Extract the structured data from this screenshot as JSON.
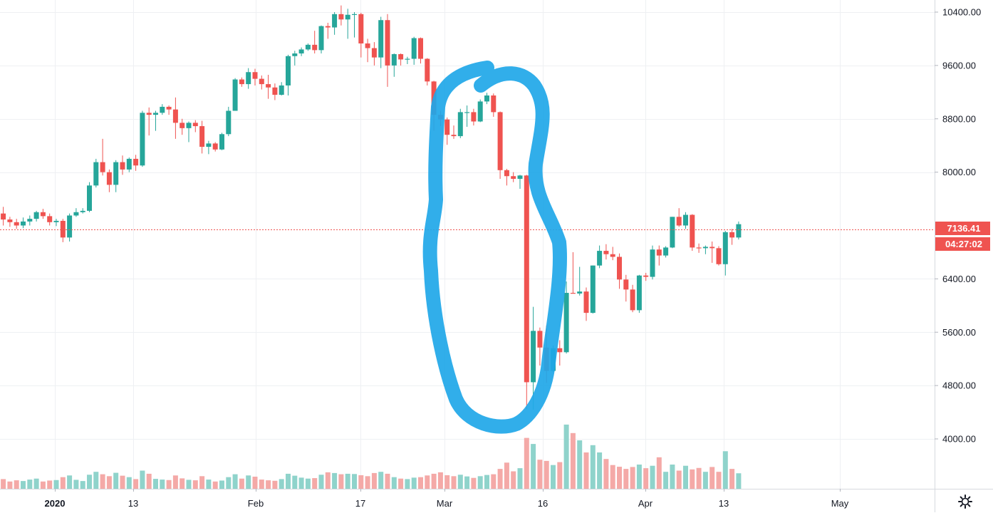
{
  "chart_data": {
    "type": "candlestick",
    "y_ticks": [
      "10400.00",
      "9600.00",
      "8800.00",
      "8000.00",
      "6400.00",
      "5600.00",
      "4800.00",
      "4000.00"
    ],
    "y_tick_values": [
      10400,
      9600,
      8800,
      8000,
      6400,
      5600,
      4800,
      4000
    ],
    "x_labels": [
      {
        "label": "2020",
        "bold": true
      },
      {
        "label": "13"
      },
      {
        "label": "Feb"
      },
      {
        "label": "17"
      },
      {
        "label": "Mar"
      },
      {
        "label": "16"
      },
      {
        "label": "Apr"
      },
      {
        "label": "13"
      },
      {
        "label": "May"
      }
    ],
    "ylim": [
      3220,
      10700
    ],
    "last_price": "7136.41",
    "countdown": "04:27:02",
    "colors": {
      "up": "#26a69a",
      "down": "#ef5350",
      "up_volume": "#8fd3cb",
      "down_volume": "#f4a9a7",
      "annotation": "#1fa7e8",
      "grid": "#eef0f3"
    },
    "candles": [
      [
        7380,
        7290,
        7480,
        7200,
        40
      ],
      [
        7290,
        7250,
        7330,
        7180,
        30
      ],
      [
        7250,
        7200,
        7300,
        7150,
        35
      ],
      [
        7200,
        7260,
        7320,
        7160,
        32
      ],
      [
        7260,
        7300,
        7350,
        7200,
        38
      ],
      [
        7300,
        7400,
        7420,
        7260,
        42
      ],
      [
        7400,
        7340,
        7450,
        7300,
        30
      ],
      [
        7340,
        7250,
        7380,
        7200,
        34
      ],
      [
        7250,
        7270,
        7300,
        7190,
        36
      ],
      [
        7270,
        7020,
        7300,
        6950,
        48
      ],
      [
        7020,
        7350,
        7380,
        6960,
        55
      ],
      [
        7350,
        7400,
        7460,
        7330,
        37
      ],
      [
        7400,
        7420,
        7460,
        7380,
        32
      ],
      [
        7420,
        7800,
        7850,
        7400,
        58
      ],
      [
        7800,
        8150,
        8200,
        7770,
        70
      ],
      [
        8150,
        8000,
        8500,
        7950,
        60
      ],
      [
        8000,
        7810,
        8040,
        7700,
        52
      ],
      [
        7810,
        8150,
        8180,
        7700,
        66
      ],
      [
        8150,
        8040,
        8250,
        7960,
        54
      ],
      [
        8040,
        8200,
        8220,
        8000,
        48
      ],
      [
        8200,
        8100,
        8260,
        8020,
        40
      ],
      [
        8100,
        8890,
        8920,
        8080,
        75
      ],
      [
        8890,
        8860,
        8970,
        8550,
        62
      ],
      [
        8860,
        8890,
        8920,
        8620,
        41
      ],
      [
        8890,
        8980,
        9020,
        8860,
        38
      ],
      [
        8980,
        8940,
        9000,
        8860,
        36
      ],
      [
        8940,
        8740,
        9120,
        8500,
        55
      ],
      [
        8740,
        8660,
        8800,
        8560,
        43
      ],
      [
        8660,
        8740,
        8760,
        8450,
        37
      ],
      [
        8740,
        8690,
        8780,
        8600,
        35
      ],
      [
        8690,
        8380,
        8770,
        8280,
        52
      ],
      [
        8380,
        8430,
        8470,
        8270,
        38
      ],
      [
        8430,
        8340,
        8450,
        8310,
        30
      ],
      [
        8340,
        8570,
        8590,
        8330,
        34
      ],
      [
        8570,
        8920,
        8980,
        8540,
        48
      ],
      [
        8920,
        9390,
        9410,
        8920,
        60
      ],
      [
        9390,
        9320,
        9420,
        9280,
        42
      ],
      [
        9320,
        9500,
        9560,
        9250,
        55
      ],
      [
        9500,
        9400,
        9550,
        9300,
        50
      ],
      [
        9400,
        9320,
        9450,
        9240,
        38
      ],
      [
        9320,
        9270,
        9460,
        9100,
        35
      ],
      [
        9270,
        9160,
        9330,
        9080,
        33
      ],
      [
        9160,
        9300,
        9350,
        9150,
        40
      ],
      [
        9300,
        9740,
        9760,
        9150,
        62
      ],
      [
        9740,
        9780,
        9820,
        9600,
        54
      ],
      [
        9780,
        9840,
        9870,
        9740,
        46
      ],
      [
        9840,
        9910,
        9930,
        9820,
        42
      ],
      [
        9910,
        9830,
        10120,
        9780,
        44
      ],
      [
        9830,
        10190,
        10200,
        9780,
        58
      ],
      [
        10190,
        10170,
        10240,
        10000,
        68
      ],
      [
        10170,
        10370,
        10400,
        10060,
        65
      ],
      [
        10370,
        10290,
        10500,
        10200,
        60
      ],
      [
        10290,
        10360,
        10450,
        10000,
        62
      ],
      [
        10360,
        10370,
        10400,
        10020,
        61
      ],
      [
        10370,
        9930,
        10390,
        9720,
        56
      ],
      [
        9930,
        9860,
        10000,
        9650,
        52
      ],
      [
        9860,
        9720,
        9950,
        9600,
        65
      ],
      [
        9720,
        10280,
        10330,
        9560,
        70
      ],
      [
        10280,
        9600,
        10370,
        9280,
        62
      ],
      [
        9600,
        9770,
        9780,
        9430,
        48
      ],
      [
        9770,
        9690,
        9780,
        9600,
        42
      ],
      [
        9690,
        9700,
        9730,
        9620,
        40
      ],
      [
        9700,
        10010,
        10030,
        9610,
        46
      ],
      [
        10010,
        9700,
        10020,
        9630,
        48
      ],
      [
        9700,
        9360,
        9710,
        9300,
        55
      ],
      [
        9360,
        8860,
        9370,
        8620,
        62
      ],
      [
        8860,
        8790,
        8920,
        8690,
        68
      ],
      [
        8790,
        8560,
        8820,
        8410,
        56
      ],
      [
        8560,
        8540,
        8700,
        8500,
        52
      ],
      [
        8540,
        8900,
        8950,
        8510,
        58
      ],
      [
        8900,
        8900,
        9000,
        8680,
        51
      ],
      [
        8900,
        8760,
        8950,
        8700,
        45
      ],
      [
        8760,
        9060,
        9090,
        8750,
        52
      ],
      [
        9060,
        9150,
        9190,
        9020,
        57
      ],
      [
        9150,
        8900,
        9180,
        8830,
        60
      ],
      [
        8900,
        8030,
        8910,
        7900,
        82
      ],
      [
        8030,
        7940,
        8050,
        7800,
        108
      ],
      [
        7940,
        7900,
        8000,
        7850,
        72
      ],
      [
        7900,
        7950,
        7960,
        7750,
        85
      ],
      [
        7950,
        4850,
        7960,
        4450,
        210
      ],
      [
        4850,
        5620,
        5980,
        4440,
        185
      ],
      [
        5620,
        5370,
        5670,
        5100,
        120
      ],
      [
        5370,
        5020,
        5700,
        4840,
        115
      ],
      [
        5020,
        5360,
        5400,
        5000,
        98
      ],
      [
        5360,
        5300,
        5480,
        5100,
        110
      ],
      [
        5300,
        6190,
        6360,
        5280,
        265
      ],
      [
        6190,
        6180,
        6800,
        6180,
        230
      ],
      [
        6180,
        6210,
        6580,
        6150,
        200
      ],
      [
        6210,
        5890,
        6270,
        5770,
        150
      ],
      [
        5890,
        6600,
        6600,
        5880,
        180
      ],
      [
        6600,
        6820,
        6900,
        6560,
        150
      ],
      [
        6820,
        6770,
        6920,
        6690,
        123
      ],
      [
        6770,
        6730,
        6880,
        6680,
        98
      ],
      [
        6730,
        6390,
        6780,
        6250,
        91
      ],
      [
        6390,
        6240,
        6460,
        6060,
        82
      ],
      [
        6240,
        5930,
        6310,
        5900,
        90
      ],
      [
        5930,
        6450,
        6460,
        5890,
        100
      ],
      [
        6450,
        6430,
        6490,
        6370,
        85
      ],
      [
        6430,
        6840,
        6900,
        6390,
        95
      ],
      [
        6840,
        6750,
        6900,
        6600,
        130
      ],
      [
        6750,
        6870,
        6890,
        6720,
        70
      ],
      [
        6870,
        7330,
        7330,
        6860,
        100
      ],
      [
        7330,
        7200,
        7460,
        7180,
        75
      ],
      [
        7200,
        7360,
        7400,
        7150,
        95
      ],
      [
        7360,
        6870,
        7370,
        6820,
        80
      ],
      [
        6870,
        6860,
        6930,
        6790,
        86
      ],
      [
        6860,
        6880,
        6900,
        6770,
        70
      ],
      [
        6880,
        6860,
        6960,
        6640,
        90
      ],
      [
        6860,
        6620,
        6890,
        6600,
        70
      ],
      [
        6620,
        7100,
        7120,
        6450,
        155
      ],
      [
        7100,
        7020,
        7150,
        6910,
        82
      ],
      [
        7020,
        7220,
        7260,
        6990,
        64
      ]
    ]
  }
}
